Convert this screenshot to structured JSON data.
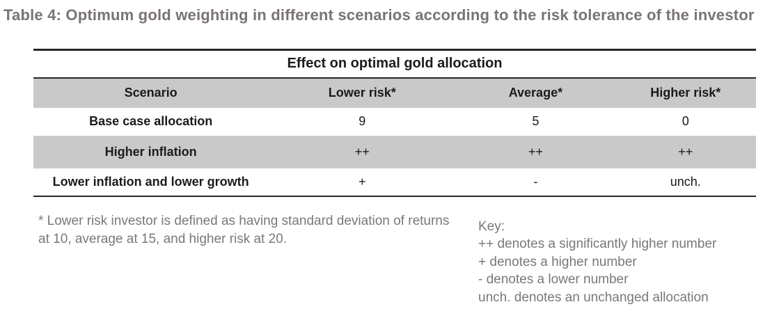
{
  "title": "Table 4: Optimum gold weighting in different scenarios according to the risk tolerance of the investor",
  "table": {
    "caption": "Effect on optimal gold allocation",
    "columns": [
      "Scenario",
      "Lower risk*",
      "Average*",
      "Higher risk*"
    ],
    "rows": [
      {
        "label": "Base case allocation",
        "values": [
          "9",
          "5",
          "0"
        ],
        "shaded": false
      },
      {
        "label": "Higher inflation",
        "values": [
          "++",
          "++",
          "++"
        ],
        "shaded": true
      },
      {
        "label": "Lower inflation and lower growth",
        "values": [
          "+",
          "-",
          "unch."
        ],
        "shaded": false
      }
    ]
  },
  "footnote": "* Lower risk investor is defined as having standard deviation of returns at 10, average at 15, and higher risk at 20.",
  "key": {
    "heading": "Key:",
    "items": [
      "++ denotes a significantly higher number",
      "+ denotes a higher number",
      "- denotes a lower number",
      "unch. denotes an unchanged allocation"
    ]
  },
  "colors": {
    "title_text": "#7a737a",
    "note_text": "#7c767d",
    "row_shade": "#c9c9c9",
    "table_line": "#262626",
    "table_text": "#1b1b1b",
    "page_bg": "#ffffff"
  }
}
